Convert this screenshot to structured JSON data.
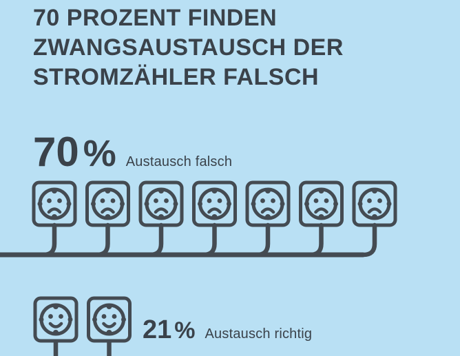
{
  "colors": {
    "background": "#b9e0f4",
    "text": "#3a424a",
    "stroke": "#444b52"
  },
  "title": {
    "line1": "70 PROZENT FINDEN",
    "line2": "ZWANGSAUSTAUSCH DER",
    "line3": "STROMZÄHLER FALSCH"
  },
  "stat_falsch": {
    "value": "70",
    "unit": "%",
    "label": "Austausch falsch"
  },
  "stat_richtig": {
    "value": "21",
    "unit": "%",
    "label": "Austausch richtig"
  },
  "pictogram": {
    "sad_row": {
      "count": 7,
      "mood": "sad",
      "wiring": "bus"
    },
    "happy_row": {
      "count": 2,
      "mood": "happy",
      "wiring": "drop"
    }
  },
  "chart_data": {
    "type": "bar",
    "variant": "pictogram",
    "title": "70 PROZENT FINDEN ZWANGSAUSTAUSCH DER STROMZÄHLER FALSCH",
    "categories": [
      "Austausch falsch",
      "Austausch richtig"
    ],
    "values": [
      70,
      21
    ],
    "unit": "%",
    "icon": "power-socket-face",
    "icon_moods": [
      "sad",
      "happy"
    ],
    "icons_per_category": [
      7,
      2
    ],
    "legend_position": "inline",
    "grid": false
  }
}
